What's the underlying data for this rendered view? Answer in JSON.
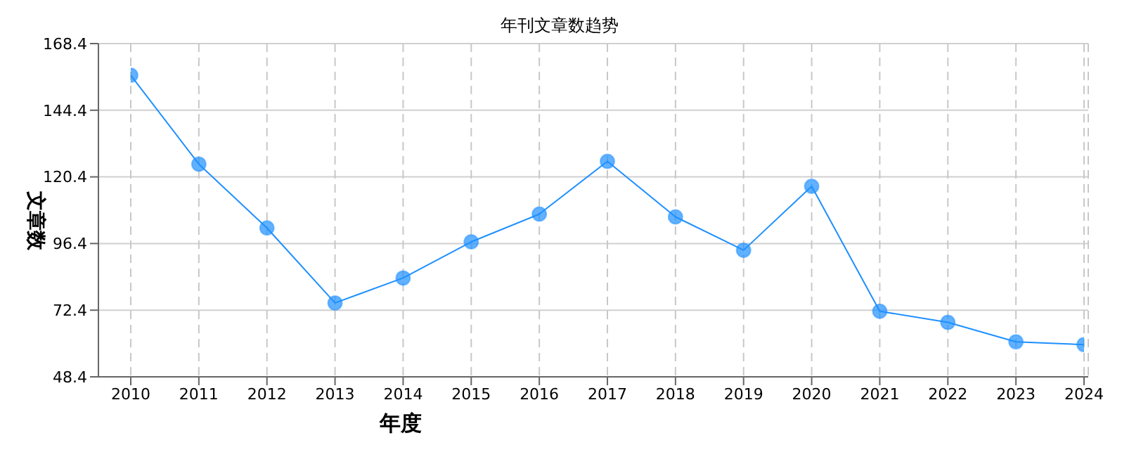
{
  "chart_data": {
    "type": "line",
    "title": "年刊文章数趋势",
    "xlabel": "年度",
    "ylabel": "文章数",
    "categories": [
      "2010",
      "2011",
      "2012",
      "2013",
      "2014",
      "2015",
      "2016",
      "2017",
      "2018",
      "2019",
      "2020",
      "2021",
      "2022",
      "2023",
      "2024"
    ],
    "series": [
      {
        "color": "#1e90ff",
        "values": [
          157,
          125,
          102,
          75,
          84,
          97,
          107,
          126,
          106,
          94,
          117,
          72,
          68,
          61,
          60
        ]
      }
    ],
    "ylim": [
      48.4,
      168.4
    ],
    "yticks": [
      48.4,
      72.4,
      96.4,
      120.4,
      144.4,
      168.4
    ],
    "grid": true,
    "marker": "circle",
    "line_style": "solid"
  }
}
